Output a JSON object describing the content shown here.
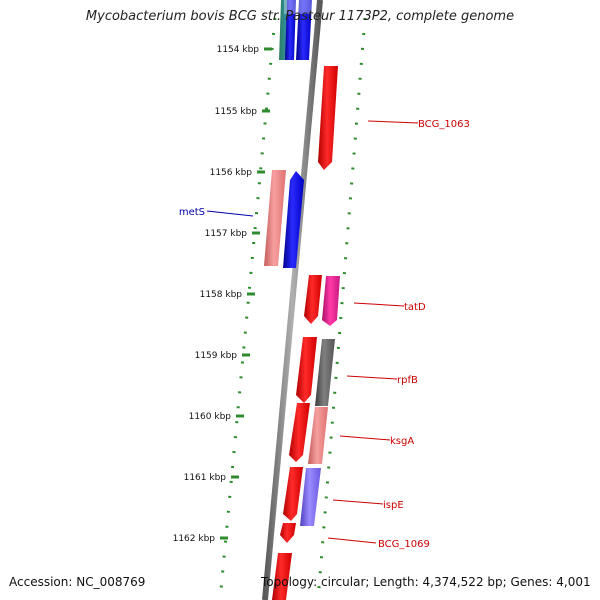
{
  "title": "Mycobacterium bovis BCG str. Pasteur 1173P2, complete genome",
  "accession": "Accession: NC_008769",
  "topology": "Topology: circular; Length: 4,374,522 bp; Genes: 4,001",
  "colors": {
    "backbone": "#808080",
    "forward_ruler": "#2e8b2e",
    "gene_red": "#ff0000",
    "gene_blue": "#0000ff",
    "gene_salmon": "#f08080",
    "gene_magenta": "#e0208f",
    "gene_gray": "#666666",
    "gene_lavender": "#7b68ee",
    "label_red": "#cc0000",
    "label_blue": "#0000aa"
  },
  "ticks": [
    {
      "label": "1154 kbp"
    },
    {
      "label": "1155 kbp"
    },
    {
      "label": "1156 kbp"
    },
    {
      "label": "1157 kbp"
    },
    {
      "label": "1158 kbp"
    },
    {
      "label": "1159 kbp"
    },
    {
      "label": "1160 kbp"
    },
    {
      "label": "1161 kbp"
    },
    {
      "label": "1162 kbp"
    }
  ],
  "gene_labels": [
    {
      "name": "BCG_1063",
      "strand": "forward"
    },
    {
      "name": "metS",
      "strand": "reverse"
    },
    {
      "name": "tatD",
      "strand": "forward"
    },
    {
      "name": "rpfB",
      "strand": "forward"
    },
    {
      "name": "ksgA",
      "strand": "forward"
    },
    {
      "name": "ispE",
      "strand": "forward"
    },
    {
      "name": "BCG_1069",
      "strand": "forward"
    }
  ]
}
